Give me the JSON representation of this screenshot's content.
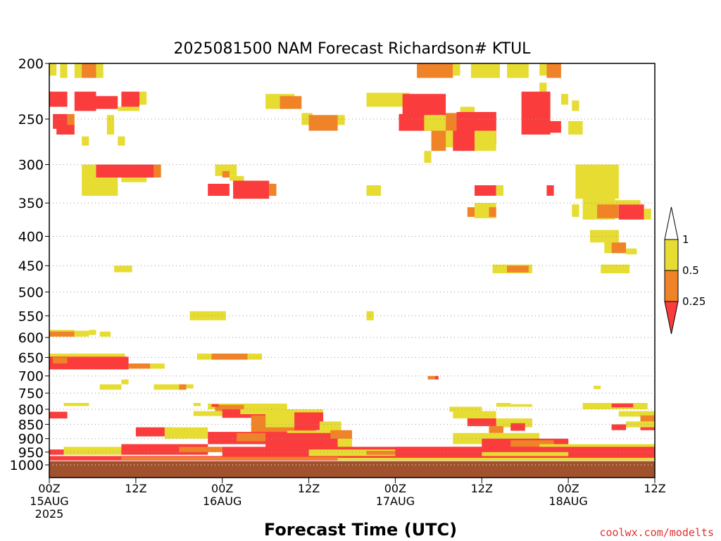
{
  "chart_data": {
    "type": "heatmap",
    "title": "2025081500 NAM Forecast Richardson# KTUL",
    "xlabel": "Forecast Time (UTC)",
    "ylabel": "",
    "credit": "coolwx.com/modelts",
    "y_scale": "log",
    "ylim": [
      200,
      1000
    ],
    "yticks": [
      200,
      250,
      300,
      350,
      400,
      450,
      500,
      550,
      600,
      650,
      700,
      750,
      800,
      850,
      900,
      950,
      1000
    ],
    "xlim": [
      0,
      84
    ],
    "x_unit": "forecast hours from 2025081500",
    "xticks": [
      {
        "x": 0,
        "line1": "00Z",
        "line2": "15AUG",
        "line3": "2025"
      },
      {
        "x": 12,
        "line1": "12Z",
        "line2": "",
        "line3": ""
      },
      {
        "x": 24,
        "line1": "00Z",
        "line2": "16AUG",
        "line3": ""
      },
      {
        "x": 36,
        "line1": "12Z",
        "line2": "",
        "line3": ""
      },
      {
        "x": 48,
        "line1": "00Z",
        "line2": "17AUG",
        "line3": ""
      },
      {
        "x": 60,
        "line1": "12Z",
        "line2": "",
        "line3": ""
      },
      {
        "x": 72,
        "line1": "00Z",
        "line2": "18AUG",
        "line3": ""
      },
      {
        "x": 84,
        "line1": "12Z",
        "line2": "",
        "line3": ""
      }
    ],
    "grid": "dotted horizontal",
    "legend": {
      "placement": "right",
      "levels": [
        "1",
        "0.5",
        "0.25"
      ],
      "bins": [
        {
          "range": "> 1",
          "color": "#ffffff"
        },
        {
          "range": "0.5 - 1",
          "color": "#e6dc32"
        },
        {
          "range": "0.25 - 0.5",
          "color": "#f08228"
        },
        {
          "range": "< 0.25",
          "color": "#fa3c3c"
        }
      ]
    },
    "colors": {
      "yellow": "#e6dc32",
      "orange": "#f08228",
      "red": "#fa3c3c",
      "ground": "#a0522d"
    },
    "ground_level": {
      "p_top": 985,
      "p_bottom": 1000
    },
    "cells": [
      [
        "y",
        0,
        1,
        200,
        210
      ],
      [
        "y",
        1.5,
        2.5,
        200,
        212
      ],
      [
        "y",
        3.5,
        4.5,
        200,
        212
      ],
      [
        "o",
        4.5,
        6.5,
        200,
        212
      ],
      [
        "y",
        6.5,
        7.5,
        200,
        212
      ],
      [
        "r",
        0,
        2.5,
        224,
        238
      ],
      [
        "r",
        3.5,
        6.5,
        224,
        242
      ],
      [
        "r",
        6.5,
        9.5,
        228,
        240
      ],
      [
        "r",
        10,
        12.5,
        224,
        238
      ],
      [
        "y",
        12.5,
        13.5,
        224,
        236
      ],
      [
        "y",
        9.5,
        12.5,
        238,
        242
      ],
      [
        "r",
        0.5,
        2.5,
        245,
        260
      ],
      [
        "o",
        2.5,
        3.5,
        245,
        258
      ],
      [
        "r",
        1,
        3.5,
        256,
        266
      ],
      [
        "y",
        8,
        9,
        246,
        266
      ],
      [
        "y",
        4.5,
        5.5,
        268,
        278
      ],
      [
        "y",
        9.5,
        10.5,
        268,
        278
      ],
      [
        "y",
        30,
        34,
        226,
        240
      ],
      [
        "o",
        32,
        35,
        228,
        240
      ],
      [
        "y",
        35,
        36.5,
        244,
        256
      ],
      [
        "o",
        36,
        40,
        246,
        262
      ],
      [
        "y",
        40,
        41,
        246,
        256
      ],
      [
        "y",
        44,
        50,
        225,
        238
      ],
      [
        "r",
        49,
        55,
        226,
        246
      ],
      [
        "r",
        48.5,
        53,
        245,
        262
      ],
      [
        "y",
        52,
        55,
        246,
        262
      ],
      [
        "o",
        55,
        56.5,
        244,
        262
      ],
      [
        "y",
        57,
        59,
        238,
        262
      ],
      [
        "r",
        56.5,
        62,
        243,
        276
      ],
      [
        "y",
        53,
        56,
        262,
        280
      ],
      [
        "o",
        53,
        55,
        262,
        284
      ],
      [
        "r",
        56,
        59,
        262,
        284
      ],
      [
        "y",
        59,
        62,
        262,
        284
      ],
      [
        "y",
        52,
        53,
        284,
        298
      ],
      [
        "o",
        51,
        56,
        200,
        212
      ],
      [
        "y",
        56,
        57,
        200,
        210
      ],
      [
        "y",
        58.5,
        62.5,
        200,
        212
      ],
      [
        "y",
        63.5,
        66.5,
        200,
        212
      ],
      [
        "y",
        68,
        69,
        200,
        210
      ],
      [
        "o",
        69,
        71,
        200,
        212
      ],
      [
        "y",
        68,
        69,
        216,
        224
      ],
      [
        "y",
        71,
        72,
        226,
        236
      ],
      [
        "r",
        65.5,
        69.5,
        224,
        266
      ],
      [
        "r",
        69.5,
        71,
        252,
        264
      ],
      [
        "y",
        72,
        74,
        252,
        266
      ],
      [
        "y",
        72.5,
        73.5,
        232,
        242
      ],
      [
        "y",
        4.5,
        9.5,
        300,
        340
      ],
      [
        "r",
        6.5,
        14.5,
        300,
        316
      ],
      [
        "o",
        14.5,
        15.5,
        300,
        316
      ],
      [
        "y",
        10,
        13.5,
        316,
        322
      ],
      [
        "y",
        23,
        26,
        300,
        314
      ],
      [
        "o",
        24,
        25,
        308,
        316
      ],
      [
        "y",
        25,
        27,
        314,
        320
      ],
      [
        "r",
        22,
        25,
        324,
        340
      ],
      [
        "r",
        25.5,
        30.5,
        320,
        344
      ],
      [
        "o",
        30.5,
        31.5,
        324,
        340
      ],
      [
        "y",
        44,
        46,
        326,
        340
      ],
      [
        "r",
        59,
        62,
        326,
        340
      ],
      [
        "y",
        62,
        63,
        326,
        340
      ],
      [
        "r",
        69,
        70,
        326,
        340
      ],
      [
        "y",
        59,
        62,
        350,
        372
      ],
      [
        "o",
        58,
        59,
        356,
        370
      ],
      [
        "o",
        61,
        62,
        356,
        370
      ],
      [
        "y",
        73,
        79,
        300,
        344
      ],
      [
        "y",
        74,
        78.5,
        344,
        374
      ],
      [
        "o",
        76,
        79,
        352,
        372
      ],
      [
        "r",
        79,
        82.5,
        352,
        374
      ],
      [
        "y",
        82.5,
        83.5,
        358,
        374
      ],
      [
        "y",
        78.5,
        82,
        346,
        352
      ],
      [
        "y",
        72.5,
        73.5,
        352,
        370
      ],
      [
        "y",
        75,
        79,
        390,
        410
      ],
      [
        "y",
        77,
        78,
        408,
        428
      ],
      [
        "o",
        78,
        80,
        410,
        428
      ],
      [
        "y",
        80,
        81.5,
        420,
        430
      ],
      [
        "y",
        9,
        11.5,
        450,
        462
      ],
      [
        "y",
        61.5,
        67,
        448,
        464
      ],
      [
        "o",
        63.5,
        66.5,
        450,
        462
      ],
      [
        "y",
        76.5,
        80.5,
        448,
        464
      ],
      [
        "y",
        19.5,
        24.5,
        540,
        560
      ],
      [
        "y",
        44,
        45,
        540,
        560
      ],
      [
        "y",
        0,
        3.5,
        582,
        598
      ],
      [
        "o",
        0,
        3.5,
        586,
        598
      ],
      [
        "y",
        3.5,
        5.5,
        584,
        598
      ],
      [
        "y",
        5.5,
        6.5,
        582,
        594
      ],
      [
        "y",
        7,
        8.5,
        586,
        598
      ],
      [
        "y",
        0,
        10.5,
        640,
        650
      ],
      [
        "r",
        0,
        11,
        648,
        682
      ],
      [
        "o",
        0.5,
        2.5,
        650,
        666
      ],
      [
        "o",
        11,
        14,
        666,
        680
      ],
      [
        "y",
        14,
        16,
        666,
        680
      ],
      [
        "y",
        20.5,
        22.5,
        640,
        656
      ],
      [
        "o",
        22.5,
        27.5,
        640,
        656
      ],
      [
        "y",
        27.5,
        29.5,
        640,
        656
      ],
      [
        "o",
        52.5,
        53.5,
        700,
        710
      ],
      [
        "r",
        53.5,
        54,
        700,
        710
      ],
      [
        "y",
        7,
        10,
        724,
        740
      ],
      [
        "y",
        14.5,
        18,
        724,
        740
      ],
      [
        "o",
        18,
        19,
        724,
        740
      ],
      [
        "y",
        19,
        20,
        724,
        736
      ],
      [
        "y",
        10,
        11,
        710,
        724
      ],
      [
        "y",
        75.5,
        76.5,
        728,
        738
      ],
      [
        "y",
        2,
        5.5,
        780,
        790
      ],
      [
        "y",
        20,
        21,
        780,
        790
      ],
      [
        "y",
        22,
        33,
        782,
        800
      ],
      [
        "o",
        23,
        27,
        786,
        806
      ],
      [
        "r",
        22.5,
        23.5,
        784,
        792
      ],
      [
        "y",
        55.5,
        60,
        792,
        808
      ],
      [
        "y",
        62,
        64,
        780,
        792
      ],
      [
        "y",
        64,
        67,
        784,
        792
      ],
      [
        "y",
        74,
        83,
        780,
        800
      ],
      [
        "r",
        78,
        81,
        782,
        794
      ],
      [
        "r",
        0,
        2.5,
        808,
        830
      ],
      [
        "y",
        20,
        24,
        806,
        822
      ],
      [
        "r",
        24,
        30,
        800,
        828
      ],
      [
        "y",
        26.5,
        32,
        800,
        816
      ],
      [
        "o",
        28,
        37,
        820,
        880
      ],
      [
        "y",
        30,
        38,
        800,
        860
      ],
      [
        "r",
        34,
        38,
        810,
        870
      ],
      [
        "y",
        37.5,
        40.5,
        840,
        880
      ],
      [
        "r",
        12,
        17,
        860,
        892
      ],
      [
        "y",
        16,
        22,
        860,
        900
      ],
      [
        "r",
        22,
        34,
        876,
        920
      ],
      [
        "o",
        26,
        33,
        880,
        910
      ],
      [
        "y",
        33,
        42,
        872,
        940
      ],
      [
        "r",
        30,
        40,
        880,
        950
      ],
      [
        "o",
        39,
        42,
        870,
        900
      ],
      [
        "y",
        56,
        62,
        806,
        830
      ],
      [
        "r",
        58,
        62,
        830,
        856
      ],
      [
        "y",
        62,
        67,
        830,
        860
      ],
      [
        "r",
        64,
        66,
        846,
        872
      ],
      [
        "o",
        61,
        63,
        856,
        880
      ],
      [
        "y",
        56,
        68,
        880,
        920
      ],
      [
        "r",
        60,
        72,
        900,
        950
      ],
      [
        "o",
        64,
        70,
        906,
        930
      ],
      [
        "y",
        68,
        84,
        920,
        950
      ],
      [
        "y",
        79,
        84,
        806,
        824
      ],
      [
        "o",
        82,
        84,
        820,
        840
      ],
      [
        "r",
        82,
        84,
        840,
        870
      ],
      [
        "y",
        80,
        84,
        840,
        860
      ],
      [
        "r",
        78,
        80,
        850,
        870
      ],
      [
        "r",
        0,
        10,
        940,
        960
      ],
      [
        "y",
        2,
        12,
        930,
        960
      ],
      [
        "r",
        10,
        22,
        920,
        960
      ],
      [
        "o",
        18,
        24,
        930,
        950
      ],
      [
        "r",
        24,
        84,
        930,
        975
      ],
      [
        "y",
        36,
        48,
        940,
        965
      ],
      [
        "o",
        44,
        56,
        945,
        960
      ],
      [
        "r",
        48,
        60,
        930,
        970
      ],
      [
        "y",
        60,
        72,
        950,
        970
      ],
      [
        "r",
        0,
        84,
        965,
        982
      ],
      [
        "o",
        10,
        40,
        968,
        980
      ],
      [
        "y",
        40,
        84,
        972,
        982
      ]
    ]
  }
}
